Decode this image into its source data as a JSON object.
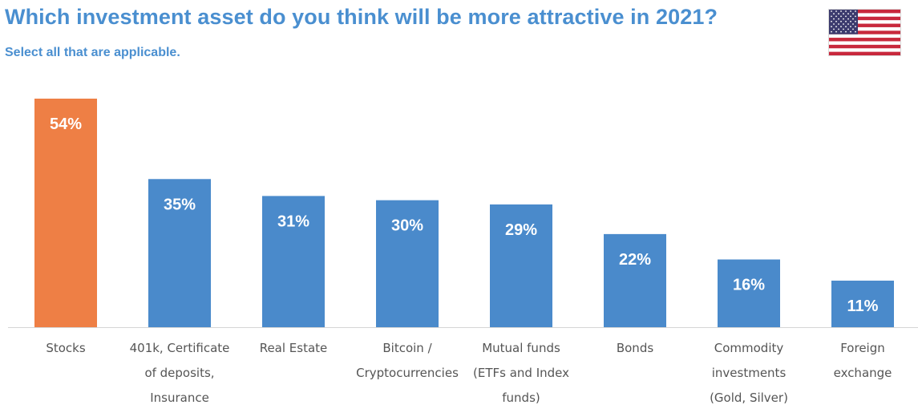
{
  "chart_data": {
    "type": "bar",
    "title": "Which investment asset do you think will be more attractive in 2021?",
    "subtitle": "Select all that are applicable.",
    "categories": [
      [
        "Stocks"
      ],
      [
        "401k, Certificate",
        "of deposits,",
        "Insurance"
      ],
      [
        "Real Estate"
      ],
      [
        "Bitcoin /",
        "Cryptocurrencies"
      ],
      [
        "Mutual funds",
        "(ETFs and Index",
        "funds)"
      ],
      [
        "Bonds"
      ],
      [
        "Commodity",
        "investments",
        "(Gold, Silver)"
      ],
      [
        "Foreign",
        "exchange"
      ]
    ],
    "values": [
      54,
      35,
      31,
      30,
      29,
      22,
      16,
      11
    ],
    "value_labels": [
      "54%",
      "35%",
      "31%",
      "30%",
      "29%",
      "22%",
      "16%",
      "11%"
    ],
    "unit": "%",
    "ylim": [
      0,
      54
    ],
    "xlabel": "",
    "ylabel": "",
    "grid": false,
    "legend": "none",
    "colors": {
      "highlight": "#ee7f45",
      "default": "#4a8acb",
      "baseline": "#d5d5d5",
      "title": "#4a8fd0"
    },
    "highlight_index": 0
  },
  "flag": {
    "icon": "us-flag-icon",
    "colors": {
      "red": "#c8283c",
      "white": "#ffffff",
      "blue": "#3c3b6e"
    }
  }
}
